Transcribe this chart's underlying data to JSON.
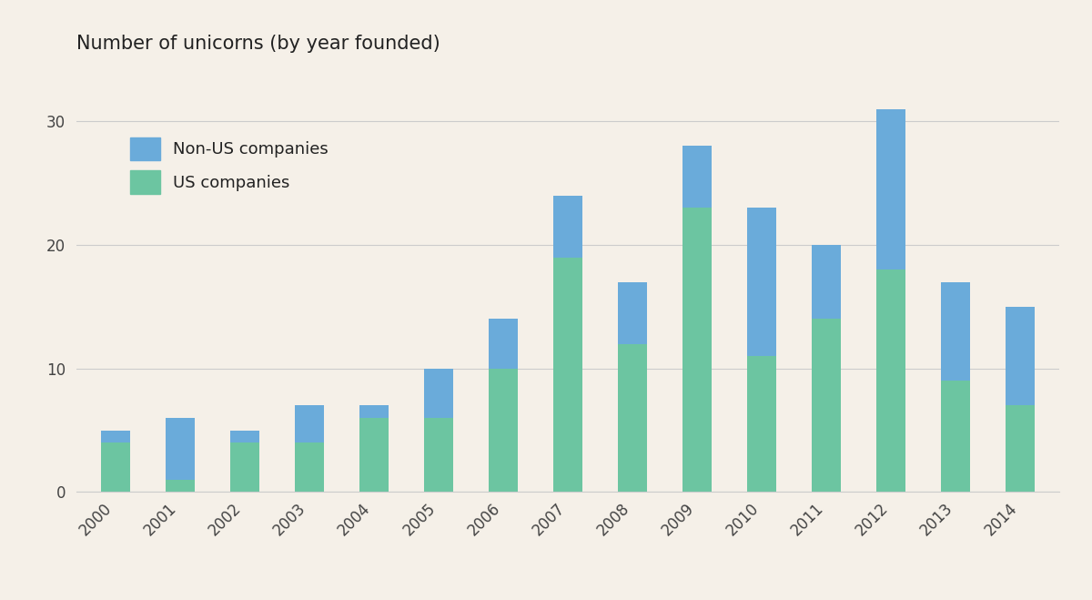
{
  "years": [
    "2000",
    "2001",
    "2002",
    "2003",
    "2004",
    "2005",
    "2006",
    "2007",
    "2008",
    "2009",
    "2010",
    "2011",
    "2012",
    "2013",
    "2014"
  ],
  "us_companies": [
    4,
    1,
    4,
    4,
    6,
    6,
    10,
    19,
    12,
    23,
    11,
    14,
    18,
    9,
    7
  ],
  "non_us_companies": [
    1,
    5,
    1,
    3,
    1,
    4,
    4,
    5,
    5,
    5,
    12,
    6,
    13,
    8,
    8
  ],
  "color_us": "#6cc5a1",
  "color_non_us": "#6aabda",
  "background_color": "#f5f0e8",
  "title": "Number of unicorns (by year founded)",
  "title_fontsize": 15,
  "legend_labels": [
    "Non-US companies",
    "US companies"
  ],
  "yticks": [
    0,
    10,
    20,
    30
  ],
  "ylim": [
    0,
    34
  ]
}
